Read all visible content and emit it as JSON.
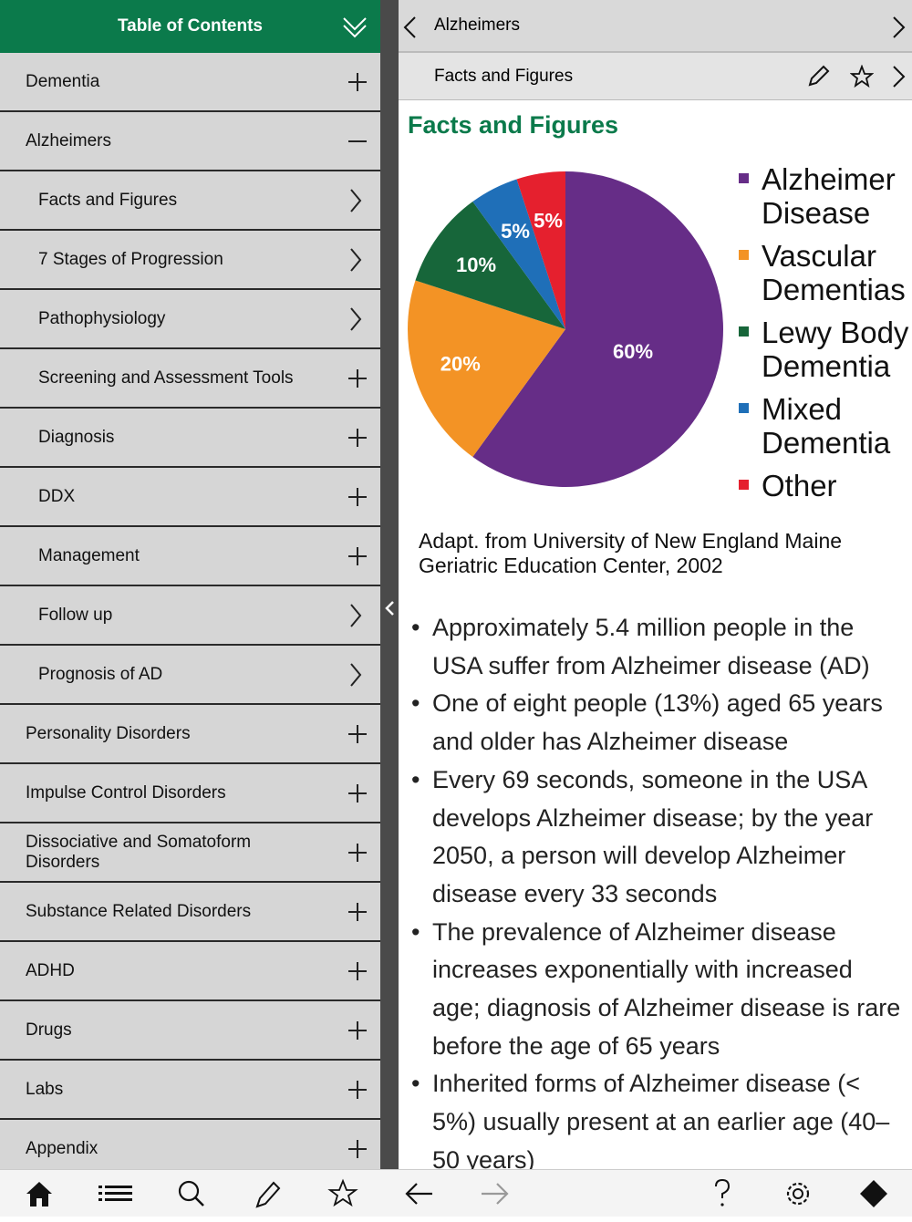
{
  "sidebar": {
    "title": "Table of Contents",
    "items": [
      {
        "label": "Dementia"
      },
      {
        "label": "Alzheimers",
        "children": [
          "Facts and Figures",
          "7 Stages of Progression",
          "Pathophysiology",
          "Screening and Assessment Tools",
          "Diagnosis",
          "DDX",
          "Management",
          "Follow up",
          "Prognosis of AD"
        ]
      },
      {
        "label": "Personality Disorders"
      },
      {
        "label": "Impulse Control Disorders"
      },
      {
        "label": "Dissociative and Somatoform Disorders"
      },
      {
        "label": "Substance Related Disorders"
      },
      {
        "label": "ADHD"
      },
      {
        "label": "Drugs"
      },
      {
        "label": "Labs"
      },
      {
        "label": "Appendix"
      }
    ]
  },
  "content": {
    "chapter": "Alzheimers",
    "section": "Facts and Figures",
    "heading": "Facts and Figures",
    "caption": "Adapt. from University of New England Maine Geriatric Education Center, 2002",
    "bullets": [
      "Approximately 5.4 million people in the USA suffer from Alzheimer disease (AD)",
      "One of eight people (13%) aged 65 years and older has Alzheimer disease",
      "Every 69 seconds, someone in the USA develops Alzheimer disease; by the year 2050, a person will develop Alzheimer disease every 33 seconds",
      "The prevalence of Alzheimer disease increases exponentially with increased age; diagnosis of Alzheimer disease is rare before the age of 65 years",
      "Inherited forms of Alzheimer disease (< 5%) usually present at an earlier age (40–50 years)"
    ]
  },
  "chart_data": {
    "type": "pie",
    "categories": [
      "Alzheimer Disease",
      "Vascular Dementias",
      "Lewy Body Dementia",
      "Mixed Dementia",
      "Other"
    ],
    "values": [
      60,
      20,
      10,
      5,
      5
    ],
    "value_labels": [
      "60%",
      "20%",
      "10%",
      "5%",
      "5%"
    ],
    "colors": [
      "#662d87",
      "#f39325",
      "#17663a",
      "#1f6fb8",
      "#e5202e"
    ]
  }
}
